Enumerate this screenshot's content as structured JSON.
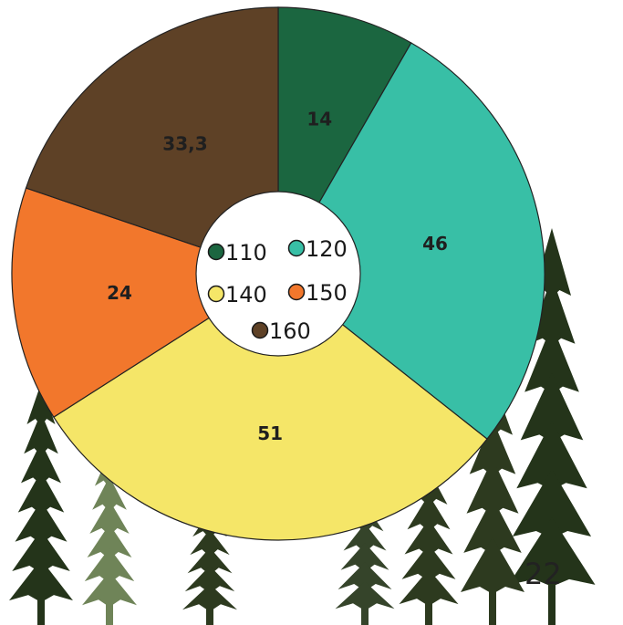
{
  "chart_data": {
    "type": "pie",
    "categories": [
      "110",
      "120",
      "140",
      "150",
      "160"
    ],
    "values": [
      14,
      46,
      51,
      24,
      33.3
    ],
    "data_labels": [
      "14",
      "46",
      "51",
      "24",
      "33,3"
    ],
    "colors": [
      "#1b6640",
      "#38bfa6",
      "#f5e668",
      "#f2772c",
      "#5e4126"
    ],
    "legend_position": "center",
    "legend_entries": [
      "110",
      "120",
      "140",
      "150",
      "160"
    ]
  },
  "page_number": "22",
  "background_graphic": "pine-tree-silhouettes"
}
